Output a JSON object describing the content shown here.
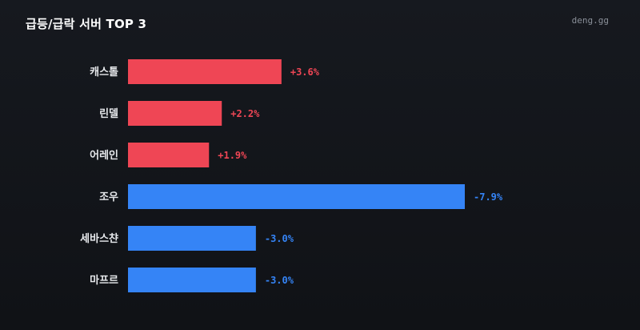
{
  "header": {
    "title": "급등/급락 서버 TOP 3",
    "brand": "deng.gg"
  },
  "colors": {
    "positive": "#ef4655",
    "negative": "#3584f6",
    "background": "#14171c"
  },
  "chart_data": {
    "type": "bar",
    "orientation": "horizontal",
    "title": "급등/급락 서버 TOP 3",
    "xlabel": "",
    "ylabel": "",
    "grid": false,
    "categories": [
      "캐스톨",
      "린델",
      "어레인",
      "조우",
      "세바스챤",
      "마프르"
    ],
    "values": [
      3.6,
      2.2,
      1.9,
      -7.9,
      -3.0,
      -3.0
    ],
    "value_labels": [
      "+3.6%",
      "+2.2%",
      "+1.9%",
      "-7.9%",
      "-3.0%",
      "-3.0%"
    ],
    "unit": "%"
  }
}
